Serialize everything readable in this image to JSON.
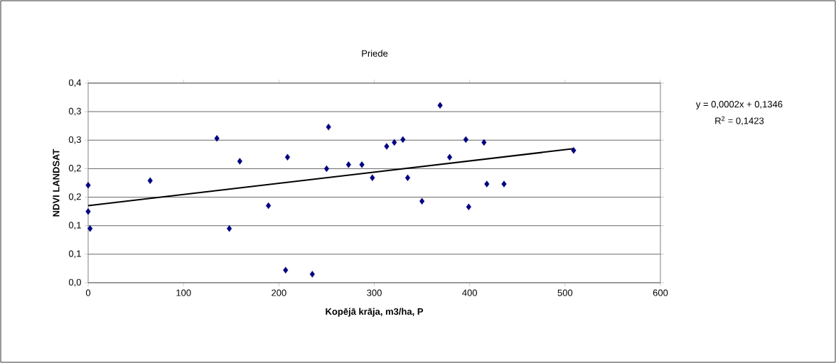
{
  "chart_data": {
    "type": "scatter",
    "title": "Priede",
    "xlabel": "Kopējā krāja, m3/ha, P",
    "ylabel": "NDVI LANDSAT",
    "xlim": [
      0,
      600
    ],
    "xticks": [
      0,
      100,
      200,
      300,
      400,
      500,
      600
    ],
    "ylim": [
      0,
      0.35
    ],
    "yticks": [
      {
        "value": 0,
        "label": "0,0"
      },
      {
        "value": 0.05,
        "label": "0,1"
      },
      {
        "value": 0.1,
        "label": "0,1"
      },
      {
        "value": 0.15,
        "label": "0,2"
      },
      {
        "value": 0.2,
        "label": "0,2"
      },
      {
        "value": 0.25,
        "label": "0,3"
      },
      {
        "value": 0.3,
        "label": "0,3"
      },
      {
        "value": 0.35,
        "label": "0,4"
      }
    ],
    "grid": "y",
    "marker": "diamond",
    "series": [
      {
        "color": "#000080",
        "x": [
          0,
          0,
          2,
          65,
          135,
          148,
          159,
          189,
          207,
          209,
          235,
          252,
          250,
          273,
          287,
          298,
          313,
          321,
          330,
          335,
          350,
          369,
          379,
          396,
          399,
          415,
          418,
          436,
          509
        ],
        "values": [
          0.171,
          0.125,
          0.095,
          0.179,
          0.253,
          0.095,
          0.213,
          0.135,
          0.022,
          0.22,
          0.015,
          0.273,
          0.2,
          0.207,
          0.207,
          0.184,
          0.239,
          0.246,
          0.251,
          0.184,
          0.143,
          0.311,
          0.22,
          0.251,
          0.133,
          0.246,
          0.173,
          0.173,
          0.232
        ]
      },
      {
        "type": "line",
        "color": "#000000",
        "marker": "none",
        "x": [
          0,
          509
        ],
        "values": [
          0.135,
          0.235
        ]
      }
    ],
    "annotations": [
      "y = 0,0002x + 0,1346",
      "R$^{2}$ = 0,1423"
    ]
  }
}
